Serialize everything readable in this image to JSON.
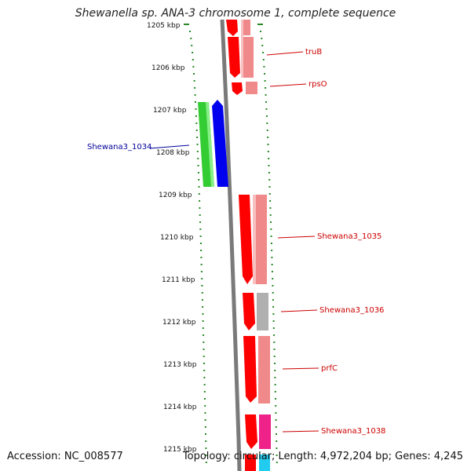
{
  "title": "Shewanella sp. ANA-3 chromosome 1, complete sequence",
  "footer": {
    "accession": "Accession: NC_008577",
    "summary": "Topology: circular; Length: 4,972,204 bp; Genes: 4,245"
  },
  "colors": {
    "tick_dots": "#2a8a2a",
    "backbone": "#7a7a7a",
    "forward_gene": "#ff0000",
    "forward_gene_pale": "#f08a8a",
    "reverse_gene_green": "#33cc33",
    "reverse_gene_blue": "#0000ee",
    "label_red": "#cc0000",
    "label_blue": "#000099",
    "gray_gene": "#b0b0b0",
    "magenta_gene": "#ee2288",
    "cyan_gene": "#22ccee"
  },
  "axis": {
    "unit": "kbp",
    "ticks": [
      "1205 kbp",
      "1206 kbp",
      "1207 kbp",
      "1208 kbp",
      "1209 kbp",
      "1210 kbp",
      "1211 kbp",
      "1212 kbp",
      "1213 kbp",
      "1214 kbp",
      "1215 kbp"
    ]
  },
  "genes": [
    {
      "label": "truB",
      "strand": "forward",
      "color": "red"
    },
    {
      "label": "rpsO",
      "strand": "forward",
      "color": "red"
    },
    {
      "label": "Shewana3_1034",
      "strand": "reverse",
      "color": "green-blue"
    },
    {
      "label": "Shewana3_1035",
      "strand": "forward",
      "color": "red"
    },
    {
      "label": "Shewana3_1036",
      "strand": "forward",
      "color": "red-gray"
    },
    {
      "label": "prfC",
      "strand": "forward",
      "color": "red"
    },
    {
      "label": "Shewana3_1038",
      "strand": "forward",
      "color": "red-magenta"
    }
  ]
}
